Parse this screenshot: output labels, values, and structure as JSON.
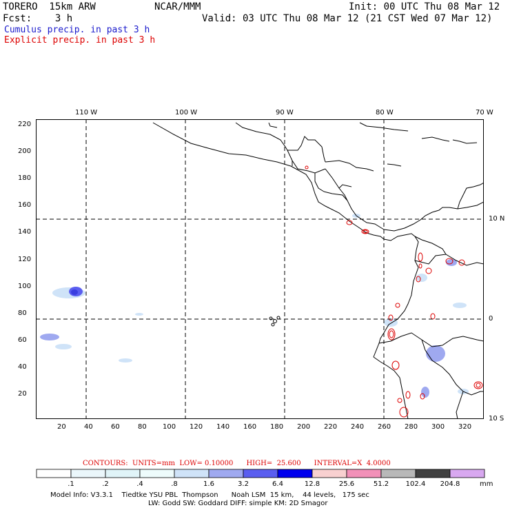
{
  "header": {
    "model_line": "TORERO  15km ARW",
    "org": "NCAR/MMM",
    "init": "Init: 00 UTC Thu 08 Mar 12",
    "fcst": "Fcst:    3 h",
    "valid": "Valid: 03 UTC Thu 08 Mar 12 (21 CST Wed 07 Mar 12)",
    "cumulus_label": "Cumulus precip. in past 3 h",
    "explicit_label": "Explicit precip. in past 3 h"
  },
  "map": {
    "top_lon_labels": [
      "110 W",
      "100 W",
      "90 W",
      "80 W",
      "70 W"
    ],
    "right_lat_labels": [
      "10 N",
      "0",
      "10 S"
    ],
    "y_ticks": [
      "220",
      "200",
      "180",
      "160",
      "140",
      "120",
      "100",
      "80",
      "60",
      "40",
      "20"
    ],
    "x_ticks": [
      "20",
      "40",
      "60",
      "80",
      "100",
      "120",
      "140",
      "160",
      "180",
      "200",
      "220",
      "240",
      "260",
      "280",
      "300",
      "320"
    ]
  },
  "legend": {
    "title": "CONTOURS:  UNITS=mm  LOW= 0.10000      HIGH=  25.600      INTERVAL=X  4.0000",
    "labels": [
      ".1",
      ".2",
      ".4",
      ".8",
      "1.6",
      "3.2",
      "6.4",
      "12.8",
      "25.6",
      "51.2",
      "102.4",
      "204.8"
    ],
    "unit": "mm",
    "colors": [
      "#ffffff",
      "#ebf7fb",
      "#e0f4f8",
      "#eefcfc",
      "#cfe3f8",
      "#9fa9f0",
      "#5a5ef0",
      "#0000ee",
      "#f8d0d0",
      "#f290b8",
      "#b8b8b8",
      "#404040",
      "#d8a8f0"
    ]
  },
  "footer": {
    "line1": "Model Info: V3.3.1    Tiedtke YSU PBL  Thompson      Noah LSM  15 km,    44 levels,   175 sec",
    "line2": "LW: Godd SW: Goddard DIFF: simple KM: 2D Smagor"
  }
}
